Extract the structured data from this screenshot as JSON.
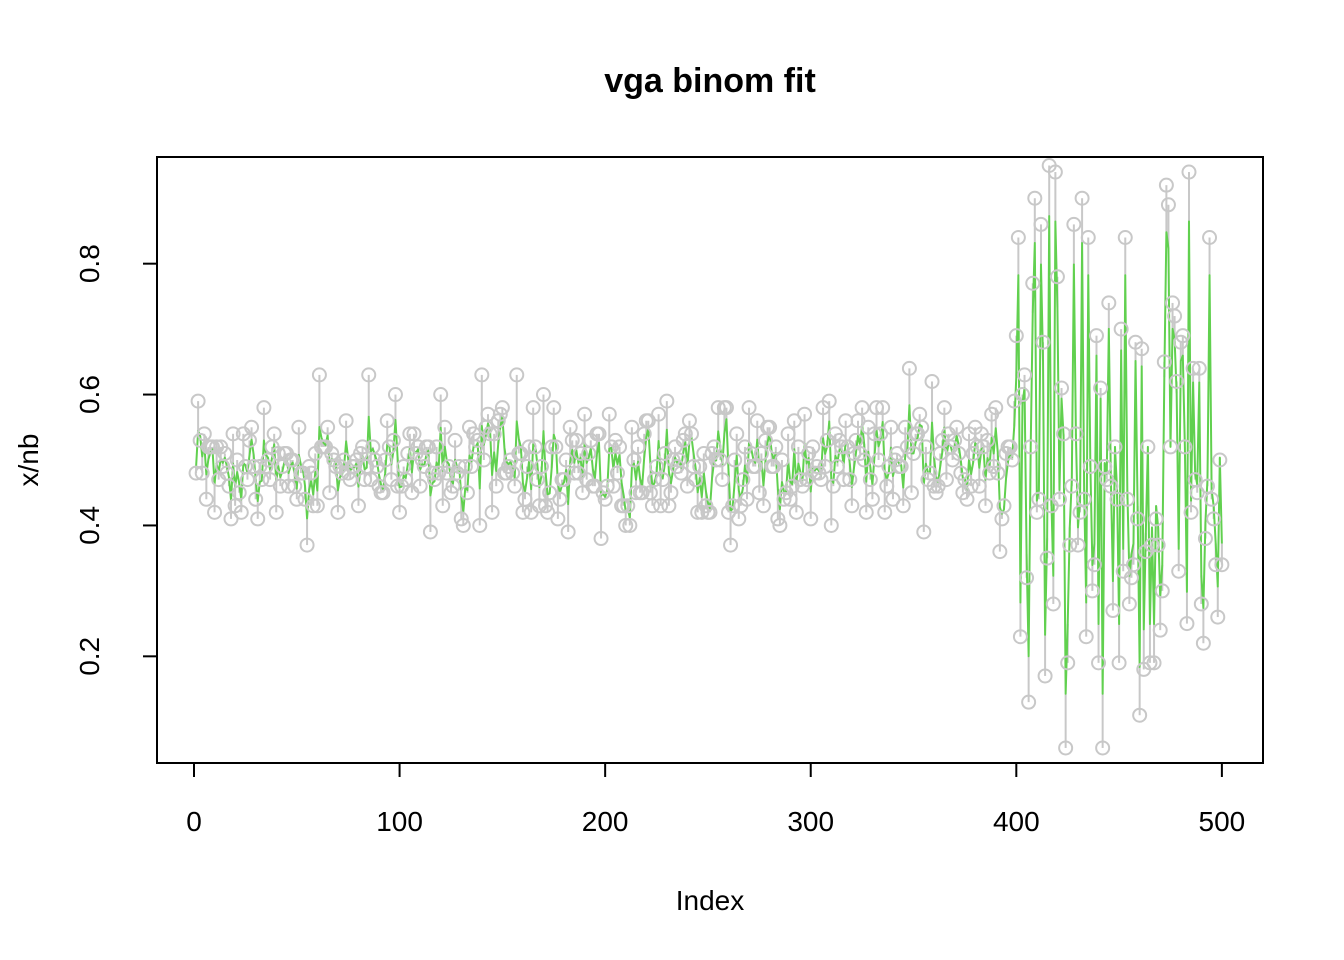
{
  "chart_data": {
    "type": "line",
    "title": "vga binom fit",
    "xlabel": "Index",
    "ylabel": "x/nb",
    "xlim": [
      -18,
      520
    ],
    "ylim": [
      0.037,
      0.963
    ],
    "xticks": [
      0,
      100,
      200,
      300,
      400,
      500
    ],
    "xtick_labels": [
      "0",
      "100",
      "200",
      "300",
      "400",
      "500"
    ],
    "yticks": [
      0.2,
      0.4,
      0.6,
      0.8
    ],
    "ytick_labels": [
      "0.2",
      "0.4",
      "0.6",
      "0.8"
    ],
    "grid": false,
    "series": [
      {
        "style": "points",
        "color": "#c8c8c8",
        "x": [
          1,
          10,
          18,
          22,
          30,
          40,
          50,
          55,
          60,
          70,
          80,
          85,
          90,
          100,
          110,
          115,
          120,
          125,
          130,
          140,
          145,
          150,
          157,
          160,
          165,
          170,
          175,
          182,
          190,
          200,
          210,
          212,
          220,
          225,
          230,
          240,
          245,
          250,
          255,
          260,
          270,
          280,
          285,
          290,
          300,
          310,
          320,
          325,
          330,
          340,
          348,
          355,
          360,
          370,
          380,
          385,
          392,
          400,
          403,
          406,
          410,
          412,
          415,
          418,
          420,
          422,
          425,
          428,
          430,
          432,
          435,
          438,
          440,
          442,
          445,
          447,
          450,
          453,
          455,
          458,
          460,
          462,
          465,
          470,
          473,
          476,
          480,
          484,
          486,
          490,
          494,
          497,
          500
        ],
        "y": [
          0.48,
          0.42,
          0.41,
          0.45,
          0.44,
          0.42,
          0.44,
          0.37,
          0.43,
          0.42,
          0.43,
          0.63,
          0.46,
          0.42,
          0.46,
          0.39,
          0.6,
          0.45,
          0.41,
          0.63,
          0.42,
          0.58,
          0.63,
          0.42,
          0.58,
          0.6,
          0.58,
          0.39,
          0.57,
          0.44,
          0.4,
          0.4,
          0.56,
          0.49,
          0.59,
          0.46,
          0.42,
          0.42,
          0.58,
          0.42,
          0.58,
          0.55,
          0.4,
          0.44,
          0.41,
          0.4,
          0.43,
          0.58,
          0.44,
          0.44,
          0.64,
          0.39,
          0.46,
          0.53,
          0.55,
          0.43,
          0.36,
          0.69,
          0.6,
          0.13,
          0.42,
          0.86,
          0.35,
          0.28,
          0.78,
          0.61,
          0.19,
          0.86,
          0.37,
          0.9,
          0.84,
          0.34,
          0.19,
          0.06,
          0.74,
          0.27,
          0.19,
          0.84,
          0.28,
          0.68,
          0.11,
          0.18,
          0.19,
          0.24,
          0.92,
          0.74,
          0.68,
          0.94,
          0.64,
          0.28,
          0.84,
          0.34,
          0.34
        ]
      },
      {
        "style": "line",
        "color": "#61d04f"
      }
    ]
  }
}
